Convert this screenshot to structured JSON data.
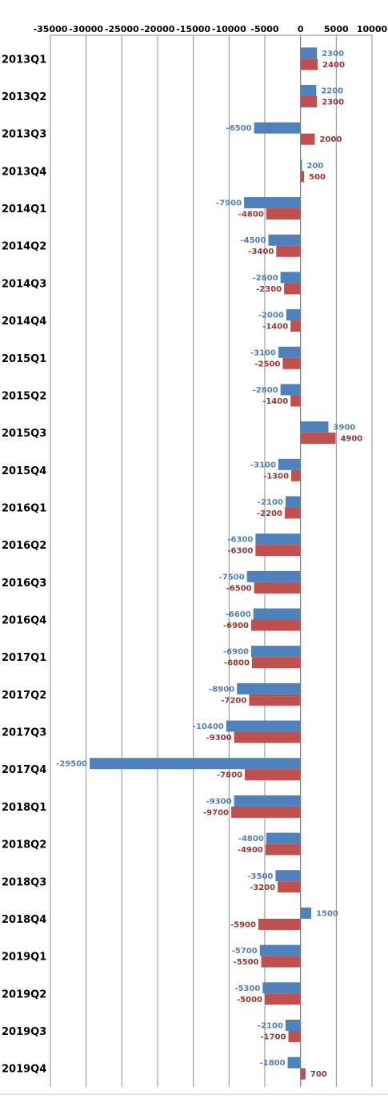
{
  "chart_data": {
    "type": "bar",
    "orientation": "horizontal",
    "categories": [
      "2013Q1",
      "2013Q2",
      "2013Q3",
      "2013Q4",
      "2014Q1",
      "2014Q2",
      "2014Q3",
      "2014Q4",
      "2015Q1",
      "2015Q2",
      "2015Q3",
      "2015Q4",
      "2016Q1",
      "2016Q2",
      "2016Q3",
      "2016Q4",
      "2017Q1",
      "2017Q2",
      "2017Q3",
      "2017Q4",
      "2018Q1",
      "2018Q2",
      "2018Q3",
      "2018Q4",
      "2019Q1",
      "2019Q2",
      "2019Q3",
      "2019Q4"
    ],
    "series": [
      {
        "color": "#4f81bd",
        "label_color": "#4f81bd",
        "values": [
          2300,
          2200,
          -6500,
          200,
          -7900,
          -4500,
          -2800,
          -2000,
          -3100,
          -2800,
          3900,
          -3100,
          -2100,
          -6300,
          -7500,
          -6600,
          -6900,
          -8900,
          -10400,
          -29500,
          -9300,
          -4800,
          -3500,
          1500,
          -5700,
          -5300,
          -2100,
          -1800
        ]
      },
      {
        "color": "#c0504d",
        "label_color": "#953735",
        "values": [
          2400,
          2300,
          2000,
          500,
          -4800,
          -3400,
          -2300,
          -1400,
          -2500,
          -1400,
          4900,
          -1300,
          -2200,
          -6300,
          -6500,
          -6900,
          -6800,
          -7200,
          -9300,
          -7800,
          -9700,
          -4900,
          -3200,
          -5900,
          -5500,
          -5000,
          -1700,
          700
        ]
      }
    ],
    "x_ticks": [
      -35000,
      -30000,
      -25000,
      -20000,
      -15000,
      -10000,
      -5000,
      0,
      5000,
      10000
    ],
    "xlim": [
      -35000,
      10000
    ],
    "axis_position": "top",
    "grid": true,
    "legend": "none",
    "title": "",
    "xlabel": "",
    "ylabel": ""
  }
}
